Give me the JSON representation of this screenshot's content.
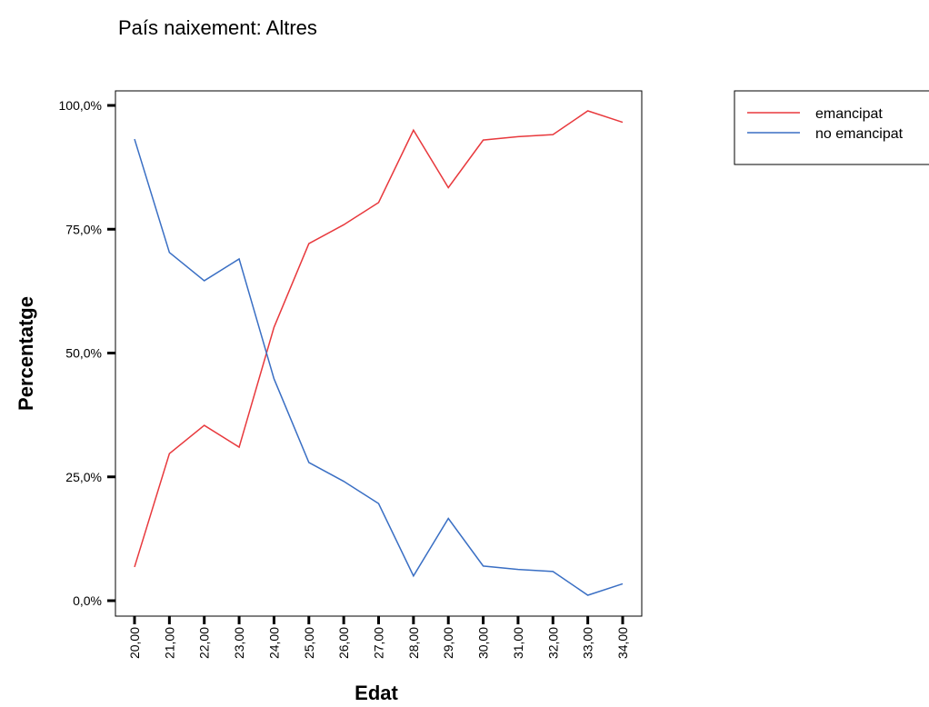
{
  "chart_data": {
    "type": "line",
    "title": "País naixement: Altres",
    "x_label": "Edat",
    "y_label": "Percentatge",
    "categories": [
      "20,00",
      "21,00",
      "22,00",
      "23,00",
      "24,00",
      "25,00",
      "26,00",
      "27,00",
      "28,00",
      "29,00",
      "30,00",
      "31,00",
      "32,00",
      "33,00",
      "34,00"
    ],
    "series": [
      {
        "name": "emancipat",
        "color": "#e8393d",
        "values": [
          6.8,
          29.7,
          35.4,
          31.0,
          55.2,
          72.1,
          75.9,
          80.4,
          95.0,
          83.4,
          93.0,
          93.7,
          94.1,
          98.9,
          96.6
        ]
      },
      {
        "name": "no emancipat",
        "color": "#3a6fc4",
        "values": [
          93.2,
          70.3,
          64.6,
          69.0,
          44.8,
          27.9,
          24.1,
          19.6,
          5.0,
          16.6,
          7.0,
          6.3,
          5.9,
          1.1,
          3.4
        ]
      }
    ],
    "ylim": [
      0,
      100
    ],
    "yticks": [
      {
        "value": 0,
        "label": "0,0%"
      },
      {
        "value": 25,
        "label": "25,0%"
      },
      {
        "value": 50,
        "label": "50,0%"
      },
      {
        "value": 75,
        "label": "75,0%"
      },
      {
        "value": 100,
        "label": "100,0%"
      }
    ],
    "legend": "right"
  }
}
